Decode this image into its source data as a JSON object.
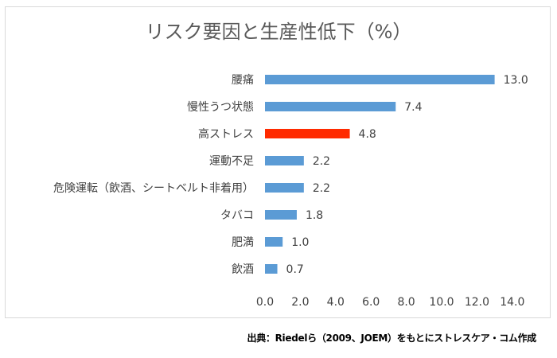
{
  "chart_data": {
    "type": "bar",
    "orientation": "horizontal",
    "title": "リスク要因と生産性低下（%）",
    "categories": [
      "腰痛",
      "慢性うつ状態",
      "高ストレス",
      "運動不足",
      "危険運転（飲酒、シートベルト非着用）",
      "タバコ",
      "肥満",
      "飲酒"
    ],
    "values": [
      13.0,
      7.4,
      4.8,
      2.2,
      2.2,
      1.8,
      1.0,
      0.7
    ],
    "value_labels": [
      "13.0",
      "7.4",
      "4.8",
      "2.2",
      "2.2",
      "1.8",
      "1.0",
      "0.7"
    ],
    "highlight_category": "高ストレス",
    "xlim": [
      0,
      14
    ],
    "x_ticks": [
      "0.0",
      "2.0",
      "4.0",
      "6.0",
      "8.0",
      "10.0",
      "12.0",
      "14.0"
    ],
    "xlabel": "",
    "ylabel": "",
    "grid": false,
    "legend": "none",
    "colors": {
      "bar": "#5b9bd5",
      "highlight": "#ff2a00"
    }
  },
  "source": "出典：Riedelら（2009、JOEM）をもとにストレスケア・コム作成"
}
